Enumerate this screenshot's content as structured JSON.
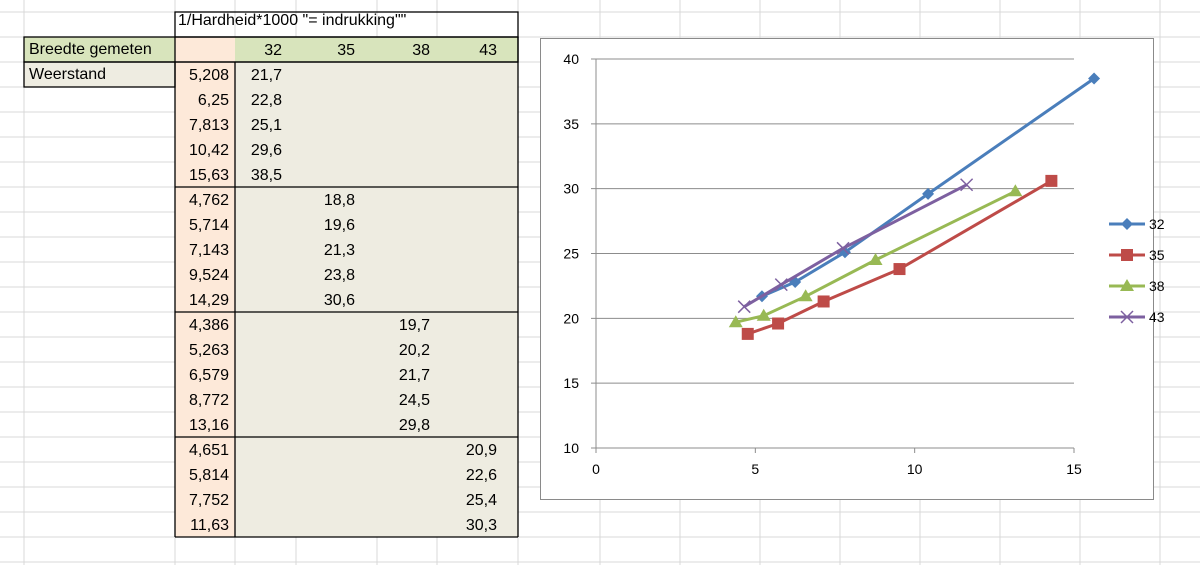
{
  "table": {
    "title": "1/Hardheid*1000 \"= indrukking\"\"",
    "row_label_1": "Breedte gemeten",
    "row_label_2": "Weerstand",
    "columns": [
      "32",
      "35",
      "38",
      "43"
    ],
    "groups": [
      {
        "rows": [
          [
            "5,208",
            "21,7"
          ],
          [
            "6,25",
            "22,8"
          ],
          [
            "7,813",
            "25,1"
          ],
          [
            "10,42",
            "29,6"
          ],
          [
            "15,63",
            "38,5"
          ]
        ]
      },
      {
        "rows": [
          [
            "4,762",
            "18,8"
          ],
          [
            "5,714",
            "19,6"
          ],
          [
            "7,143",
            "21,3"
          ],
          [
            "9,524",
            "23,8"
          ],
          [
            "14,29",
            "30,6"
          ]
        ]
      },
      {
        "rows": [
          [
            "4,386",
            "19,7"
          ],
          [
            "5,263",
            "20,2"
          ],
          [
            "6,579",
            "21,7"
          ],
          [
            "8,772",
            "24,5"
          ],
          [
            "13,16",
            "29,8"
          ]
        ]
      },
      {
        "rows": [
          [
            "4,651",
            "20,9"
          ],
          [
            "5,814",
            "22,6"
          ],
          [
            "7,752",
            "25,4"
          ],
          [
            "11,63",
            "30,3"
          ]
        ]
      }
    ],
    "colors": {
      "header_green": "#d8e4bc",
      "orange": "#fde9d9",
      "beige": "#eeece1"
    }
  },
  "chart_data": {
    "type": "line",
    "xlim": [
      0,
      15
    ],
    "ylim": [
      10,
      40
    ],
    "xticks": [
      0,
      5,
      10,
      15
    ],
    "yticks": [
      10,
      15,
      20,
      25,
      30,
      35,
      40
    ],
    "x_tick_labels": [
      "0",
      "5",
      "10",
      "15"
    ],
    "y_tick_labels": [
      "10",
      "15",
      "20",
      "25",
      "30",
      "35",
      "40"
    ],
    "grid": "horizontal",
    "legend_position": "right",
    "series": [
      {
        "name": "32",
        "color": "#4a7ebb",
        "marker": "diamond",
        "x": [
          5.208,
          6.25,
          7.813,
          10.42,
          15.63
        ],
        "y": [
          21.7,
          22.8,
          25.1,
          29.6,
          38.5
        ]
      },
      {
        "name": "35",
        "color": "#be4b48",
        "marker": "square",
        "x": [
          4.762,
          5.714,
          7.143,
          9.524,
          14.29
        ],
        "y": [
          18.8,
          19.6,
          21.3,
          23.8,
          30.6
        ]
      },
      {
        "name": "38",
        "color": "#98b954",
        "marker": "triangle",
        "x": [
          4.386,
          5.263,
          6.579,
          8.772,
          13.16
        ],
        "y": [
          19.7,
          20.2,
          21.7,
          24.5,
          29.8
        ]
      },
      {
        "name": "43",
        "color": "#7d60a0",
        "marker": "x",
        "x": [
          4.651,
          5.814,
          7.752,
          11.63
        ],
        "y": [
          20.9,
          22.6,
          25.4,
          30.3
        ]
      }
    ]
  }
}
